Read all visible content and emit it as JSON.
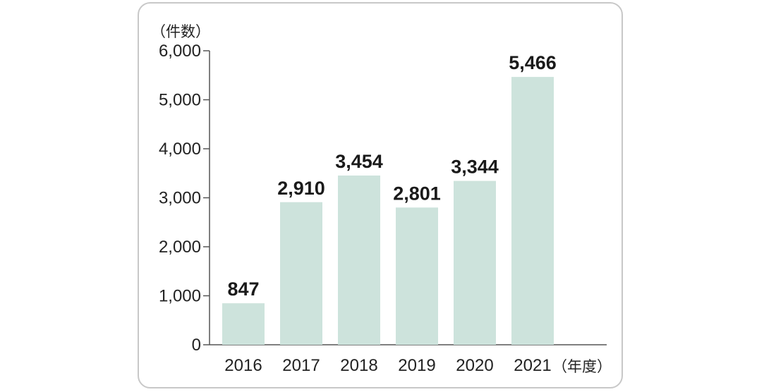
{
  "chart_data": {
    "type": "bar",
    "categories": [
      "2016",
      "2017",
      "2018",
      "2019",
      "2020",
      "2021"
    ],
    "values": [
      847,
      2910,
      3454,
      2801,
      3344,
      5466
    ],
    "value_labels": [
      "847",
      "2,910",
      "3,454",
      "2,801",
      "3,344",
      "5,466"
    ],
    "ylim": [
      0,
      6000
    ],
    "yticks": [
      0,
      1000,
      2000,
      3000,
      4000,
      5000,
      6000
    ],
    "ytick_labels": [
      "0",
      "1,000",
      "2,000",
      "3,000",
      "4,000",
      "5,000",
      "6,000"
    ],
    "y_unit": "（件数）",
    "x_unit": "（年度）",
    "grid": false,
    "bar_color": "#cde3dc",
    "axis_color": "#555555"
  }
}
